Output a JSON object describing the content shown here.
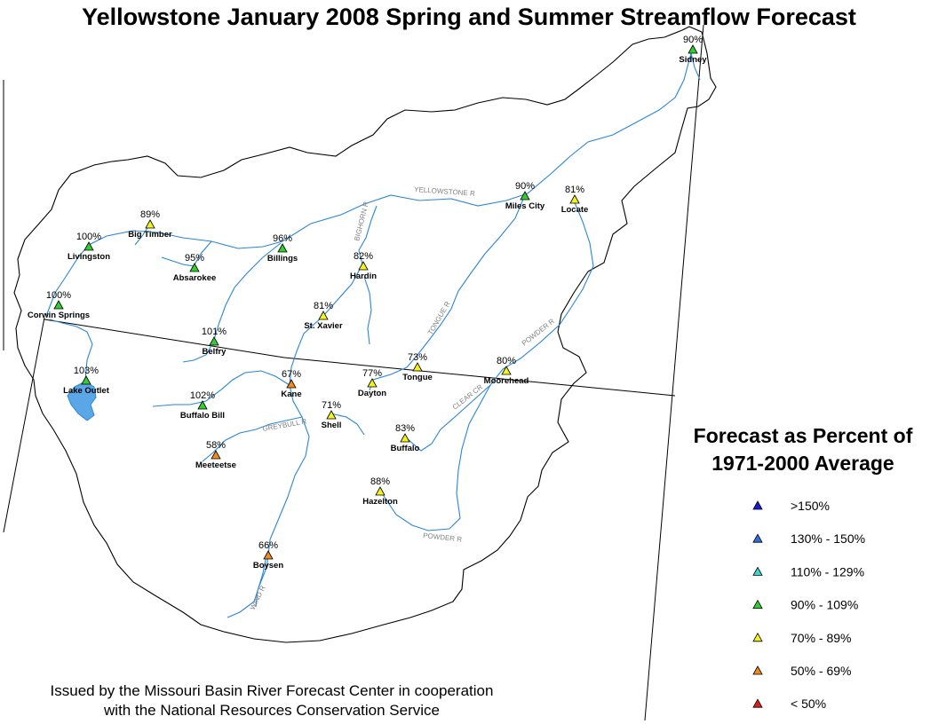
{
  "title": "Yellowstone January 2008 Spring and Summer Streamflow Forecast",
  "legend": {
    "title_line1": "Forecast as Percent of",
    "title_line2": "1971-2000 Average",
    "items": [
      {
        "label": ">150%",
        "color": "#1a1ad6"
      },
      {
        "label": "130% - 150%",
        "color": "#2f6fe0"
      },
      {
        "label": "110% - 129%",
        "color": "#3fd3d3"
      },
      {
        "label": "90% - 109%",
        "color": "#2fcf2f"
      },
      {
        "label": "70% - 89%",
        "color": "#f2f21e"
      },
      {
        "label": "50% - 69%",
        "color": "#f08a1e"
      },
      {
        "label": "< 50%",
        "color": "#e01e1e"
      }
    ]
  },
  "footer": {
    "line1": "Issued by the Missouri Basin River Forecast Center in cooperation",
    "line2": "with the National Resources Conservation Service"
  },
  "colors": {
    "river": "#2a86d6",
    "lake": "#5aa6e6",
    "outline": "#000000",
    "river_label": "#808080"
  },
  "stations": [
    {
      "name": "Sidney",
      "pct": "90%",
      "class": "90% - 109%"
    },
    {
      "name": "Miles City",
      "pct": "90%",
      "class": "90% - 109%"
    },
    {
      "name": "Locate",
      "pct": "81%",
      "class": "70% - 89%"
    },
    {
      "name": "Big Timber",
      "pct": "89%",
      "class": "70% - 89%"
    },
    {
      "name": "Livingston",
      "pct": "100%",
      "class": "90% - 109%"
    },
    {
      "name": "Billings",
      "pct": "96%",
      "class": "90% - 109%"
    },
    {
      "name": "Absarokee",
      "pct": "95%",
      "class": "90% - 109%"
    },
    {
      "name": "Hardin",
      "pct": "82%",
      "class": "70% - 89%"
    },
    {
      "name": "Corwin Springs",
      "pct": "100%",
      "class": "90% - 109%"
    },
    {
      "name": "St. Xavier",
      "pct": "81%",
      "class": "70% - 89%"
    },
    {
      "name": "Belfry",
      "pct": "101%",
      "class": "90% - 109%"
    },
    {
      "name": "Lake Outlet",
      "pct": "103%",
      "class": "90% - 109%"
    },
    {
      "name": "Kane",
      "pct": "67%",
      "class": "50% - 69%"
    },
    {
      "name": "Dayton",
      "pct": "77%",
      "class": "70% - 89%"
    },
    {
      "name": "Tongue",
      "pct": "73%",
      "class": "70% - 89%"
    },
    {
      "name": "Moorehead",
      "pct": "80%",
      "class": "70% - 89%"
    },
    {
      "name": "Buffalo Bill",
      "pct": "102%",
      "class": "90% - 109%"
    },
    {
      "name": "Shell",
      "pct": "71%",
      "class": "70% - 89%"
    },
    {
      "name": "Buffalo",
      "pct": "83%",
      "class": "70% - 89%"
    },
    {
      "name": "Meeteetse",
      "pct": "58%",
      "class": "50% - 69%"
    },
    {
      "name": "Hazelton",
      "pct": "88%",
      "class": "70% - 89%"
    },
    {
      "name": "Boysen",
      "pct": "66%",
      "class": "50% - 69%"
    }
  ],
  "rivers": [
    {
      "name": "YELLOWSTONE R"
    },
    {
      "name": "BIGHORN R"
    },
    {
      "name": "TONGUE R"
    },
    {
      "name": "POWDER R"
    },
    {
      "name": "CLEAR CR"
    },
    {
      "name": "GREYBULL R"
    },
    {
      "name": "POWDER R"
    },
    {
      "name": "WIND R"
    }
  ]
}
